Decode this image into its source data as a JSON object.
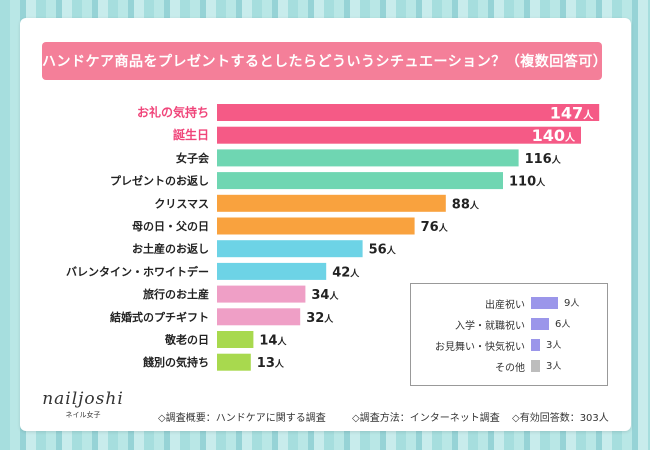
{
  "header": {
    "title": "ハンドケア商品をプレゼントするとしたらどういうシチュエーション？（複数回答可）"
  },
  "chart_data": {
    "type": "bar",
    "orientation": "horizontal",
    "value_unit": "人",
    "categories": [
      "お礼の気持ち",
      "誕生日",
      "女子会",
      "プレゼントのお返し",
      "クリスマス",
      "母の日・父の日",
      "お土産のお返し",
      "バレンタイン・ホワイトデー",
      "旅行のお土産",
      "結婚式のプチギフト",
      "敬老の日",
      "餞別の気持ち"
    ],
    "values": [
      147,
      140,
      116,
      110,
      88,
      76,
      56,
      42,
      34,
      32,
      14,
      13
    ],
    "colors": [
      "#f55a86",
      "#f55a86",
      "#6fd6b2",
      "#6fd6b2",
      "#f9a23e",
      "#f9a23e",
      "#6dd3e6",
      "#6dd3e6",
      "#ef9fc6",
      "#ef9fc6",
      "#a8d94e",
      "#a8d94e"
    ],
    "highlight": [
      true,
      true,
      false,
      false,
      false,
      false,
      false,
      false,
      false,
      false,
      false,
      false
    ],
    "inset": {
      "categories": [
        "出産祝い",
        "入学・就職祝い",
        "お見舞い・快気祝い",
        "その他"
      ],
      "values": [
        9,
        6,
        3,
        3
      ],
      "colors": [
        "#9b96ea",
        "#9b96ea",
        "#9b96ea",
        "#bdbdbd"
      ]
    }
  },
  "branding": {
    "logo": "nailjoshi",
    "logo_sub": "ネイル女子"
  },
  "footer": {
    "survey_topic": "◇調査概要：ハンドケアに関する調査",
    "survey_method": "◇調査方法：インターネット調査",
    "respondents": "◇有効回答数：303人"
  }
}
